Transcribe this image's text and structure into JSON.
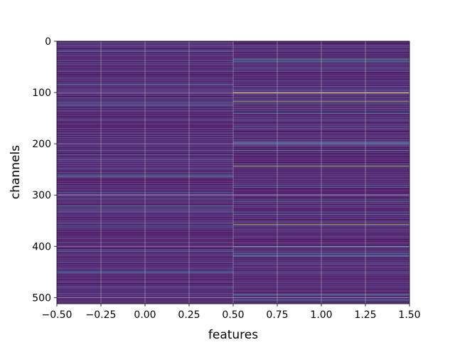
{
  "chart_data": {
    "type": "heatmap",
    "title": "",
    "xlabel": "features",
    "ylabel": "channels",
    "xlim": [
      -0.5,
      1.5
    ],
    "ylim": [
      512,
      0
    ],
    "y_inverted": true,
    "grid": true,
    "colormap": "viridis",
    "columns": [
      0,
      1
    ],
    "n_rows": 512,
    "xticks": [
      {
        "value": -0.5,
        "label": "−0.50"
      },
      {
        "value": -0.25,
        "label": "−0.25"
      },
      {
        "value": 0.0,
        "label": "0.00"
      },
      {
        "value": 0.25,
        "label": "0.25"
      },
      {
        "value": 0.5,
        "label": "0.50"
      },
      {
        "value": 0.75,
        "label": "0.75"
      },
      {
        "value": 1.0,
        "label": "1.00"
      },
      {
        "value": 1.25,
        "label": "1.25"
      },
      {
        "value": 1.5,
        "label": "1.50"
      }
    ],
    "yticks": [
      {
        "value": 0,
        "label": "0"
      },
      {
        "value": 100,
        "label": "100"
      },
      {
        "value": 200,
        "label": "200"
      },
      {
        "value": 300,
        "label": "300"
      },
      {
        "value": 400,
        "label": "400"
      },
      {
        "value": 500,
        "label": "500"
      }
    ],
    "background_range": [
      0.02,
      0.2
    ],
    "highlights": [
      {
        "column": 0,
        "channel": 20,
        "value": 0.35
      },
      {
        "column": 0,
        "channel": 57,
        "value": 0.3
      },
      {
        "column": 0,
        "channel": 84,
        "value": 0.42
      },
      {
        "column": 0,
        "channel": 118,
        "value": 0.4
      },
      {
        "column": 0,
        "channel": 126,
        "value": 0.45
      },
      {
        "column": 0,
        "channel": 200,
        "value": 0.3
      },
      {
        "column": 0,
        "channel": 263,
        "value": 0.62
      },
      {
        "column": 0,
        "channel": 296,
        "value": 0.35
      },
      {
        "column": 0,
        "channel": 322,
        "value": 0.55
      },
      {
        "column": 0,
        "channel": 361,
        "value": 0.3
      },
      {
        "column": 0,
        "channel": 408,
        "value": 0.38
      },
      {
        "column": 0,
        "channel": 452,
        "value": 0.3
      },
      {
        "column": 0,
        "channel": 500,
        "value": 0.32
      },
      {
        "column": 1,
        "channel": 36,
        "value": 0.55
      },
      {
        "column": 1,
        "channel": 40,
        "value": 0.6
      },
      {
        "column": 1,
        "channel": 101,
        "value": 1.0
      },
      {
        "column": 1,
        "channel": 117,
        "value": 0.85
      },
      {
        "column": 1,
        "channel": 141,
        "value": 0.5
      },
      {
        "column": 1,
        "channel": 198,
        "value": 0.45
      },
      {
        "column": 1,
        "channel": 213,
        "value": 0.5
      },
      {
        "column": 1,
        "channel": 244,
        "value": 0.85
      },
      {
        "column": 1,
        "channel": 285,
        "value": 0.4
      },
      {
        "column": 1,
        "channel": 313,
        "value": 0.45
      },
      {
        "column": 1,
        "channel": 338,
        "value": 0.4
      },
      {
        "column": 1,
        "channel": 357,
        "value": 0.9
      },
      {
        "column": 1,
        "channel": 401,
        "value": 0.5
      },
      {
        "column": 1,
        "channel": 419,
        "value": 0.6
      },
      {
        "column": 1,
        "channel": 495,
        "value": 0.5
      },
      {
        "column": 1,
        "channel": 505,
        "value": 0.45
      }
    ]
  }
}
